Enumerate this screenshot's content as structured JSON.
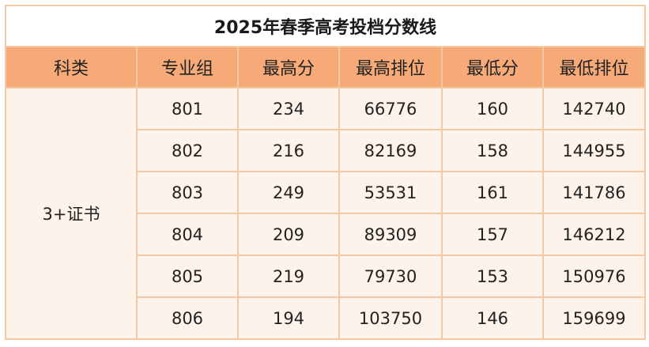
{
  "title": "2025年春季高考投档分数线",
  "headers": [
    "科类",
    "专业组",
    "最高分",
    "最高排位",
    "最低分",
    "最低排位"
  ],
  "subject": "3+证书",
  "rows": [
    {
      "group": "801",
      "max_score": "234",
      "max_rank": "66776",
      "min_score": "160",
      "min_rank": "142740"
    },
    {
      "group": "802",
      "max_score": "216",
      "max_rank": "82169",
      "min_score": "158",
      "min_rank": "144955"
    },
    {
      "group": "803",
      "max_score": "249",
      "max_rank": "53531",
      "min_score": "161",
      "min_rank": "141786"
    },
    {
      "group": "804",
      "max_score": "209",
      "max_rank": "89309",
      "min_score": "157",
      "min_rank": "146212"
    },
    {
      "group": "805",
      "max_score": "219",
      "max_rank": "79730",
      "min_score": "153",
      "min_rank": "150976"
    },
    {
      "group": "806",
      "max_score": "194",
      "max_rank": "103750",
      "min_score": "146",
      "min_rank": "159699"
    }
  ],
  "colors": {
    "header_bg": "#f6aa78",
    "cell_bg": "#fdf3ea",
    "border": "#f3c9a3"
  }
}
